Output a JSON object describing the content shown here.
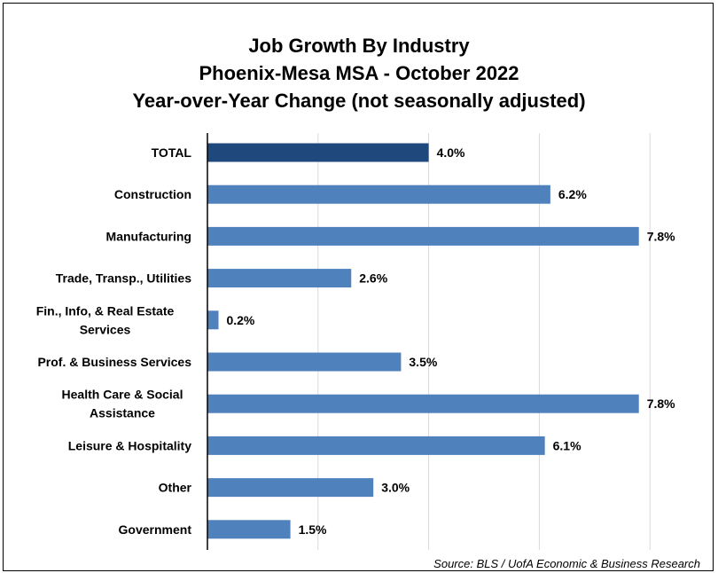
{
  "chart_data": {
    "type": "bar",
    "orientation": "horizontal",
    "title": [
      "Job Growth By Industry",
      "Phoenix-Mesa MSA - October 2022",
      "Year-over-Year Change (not seasonally adjusted)"
    ],
    "categories": [
      [
        "TOTAL"
      ],
      [
        "Construction"
      ],
      [
        "Manufacturing"
      ],
      [
        "Trade, Transp., Utilities"
      ],
      [
        "Fin., Info, & Real Estate",
        "Services"
      ],
      [
        "Prof. & Business Services"
      ],
      [
        "Health Care & Social",
        "Assistance"
      ],
      [
        "Leisure & Hospitality"
      ],
      [
        "Other"
      ],
      [
        "Government"
      ]
    ],
    "values": [
      4.0,
      6.2,
      7.8,
      2.6,
      0.2,
      3.5,
      7.8,
      6.1,
      3.0,
      1.5
    ],
    "value_labels": [
      "4.0%",
      "6.2%",
      "7.8%",
      "2.6%",
      "0.2%",
      "3.5%",
      "7.8%",
      "6.1%",
      "3.0%",
      "1.5%"
    ],
    "xlim": [
      0,
      8
    ],
    "grid": true,
    "legend": "none",
    "colors": {
      "highlight": "#1F497D",
      "bar": "#4F81BD",
      "grid": "#D9D9D9"
    },
    "source": "Source: BLS / UofA Economic & Business Research"
  }
}
